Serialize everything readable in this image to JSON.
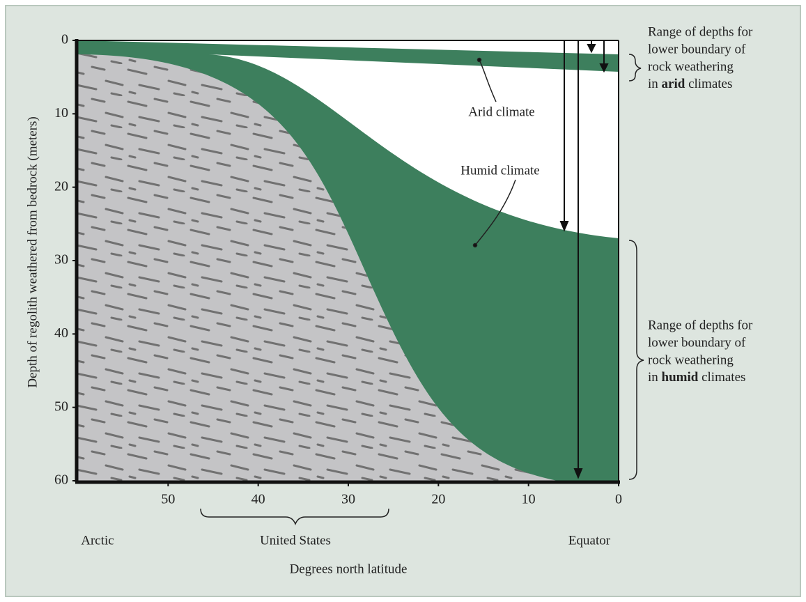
{
  "axes": {
    "y_title": "Depth of regolith weathered from bedrock (meters)",
    "x_title": "Degrees north latitude",
    "ylim": [
      0,
      60
    ],
    "yticks": [
      0,
      10,
      20,
      30,
      40,
      50,
      60
    ],
    "xlim": [
      60,
      0
    ],
    "xticks": [
      50,
      40,
      30,
      20,
      10,
      0
    ]
  },
  "regions": {
    "left": "Arctic",
    "middle": "United States",
    "right": "Equator"
  },
  "labels": {
    "arid": "Arid climate",
    "humid": "Humid climate"
  },
  "arid_range": {
    "lines": [
      "Range of depths for",
      "lower boundary of",
      "rock weathering"
    ],
    "last": {
      "before": "in ",
      "bold": "arid",
      "after": " climates"
    }
  },
  "humid_range": {
    "lines": [
      "Range of depths for",
      "lower boundary of",
      "rock weathering"
    ],
    "last": {
      "before": "in ",
      "bold": "humid",
      "after": " climates"
    }
  }
}
